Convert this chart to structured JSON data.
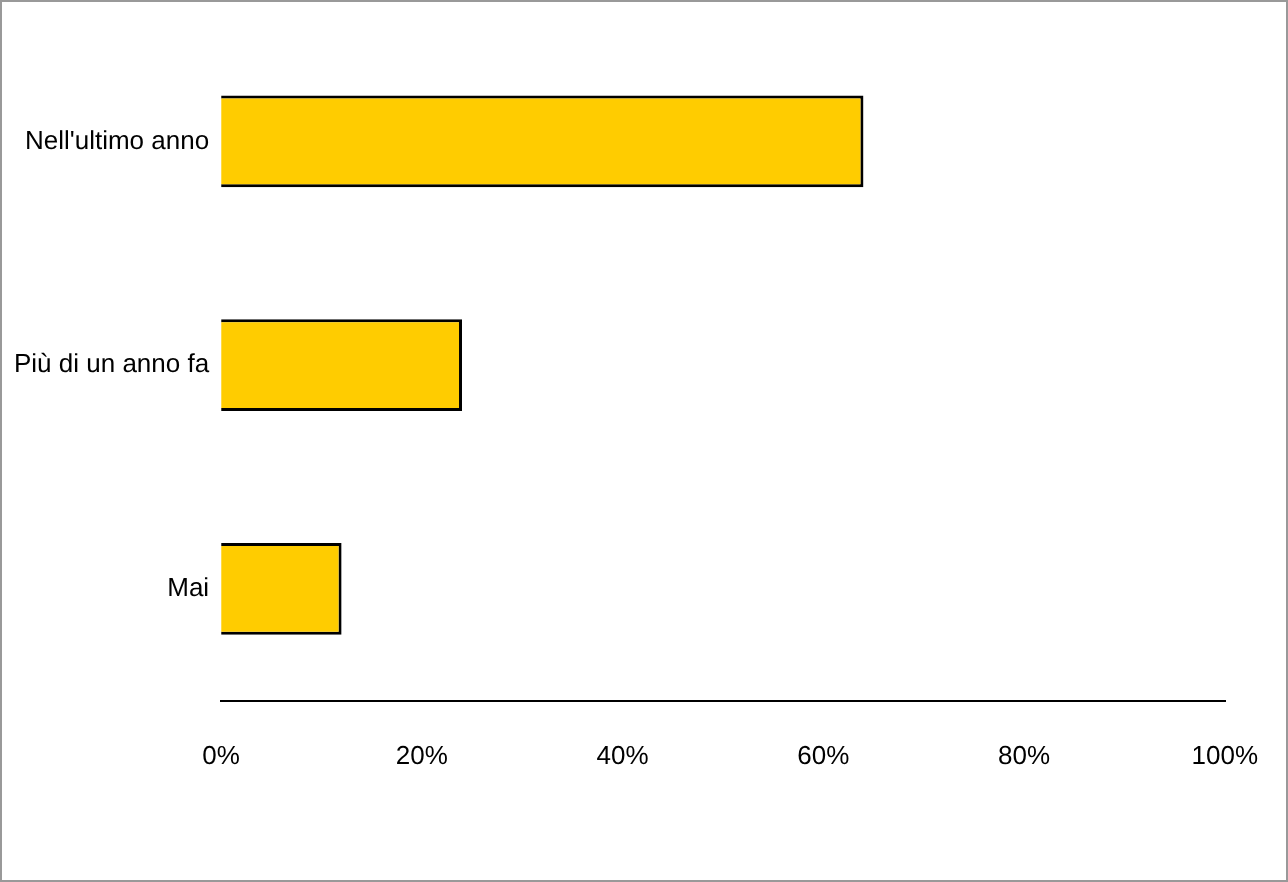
{
  "chart_data": {
    "type": "bar",
    "orientation": "horizontal",
    "categories": [
      "Nell'ultimo anno",
      "Più di un anno fa",
      "Mai"
    ],
    "values": [
      64,
      24,
      12
    ],
    "color": "#ffcc00",
    "xlim": [
      0,
      100
    ],
    "xticks": [
      {
        "value": 0,
        "label": "0%"
      },
      {
        "value": 20,
        "label": "20%"
      },
      {
        "value": 40,
        "label": "40%"
      },
      {
        "value": 60,
        "label": "60%"
      },
      {
        "value": 80,
        "label": "80%"
      },
      {
        "value": 100,
        "label": "100%"
      }
    ],
    "grid": false,
    "legend": false
  }
}
